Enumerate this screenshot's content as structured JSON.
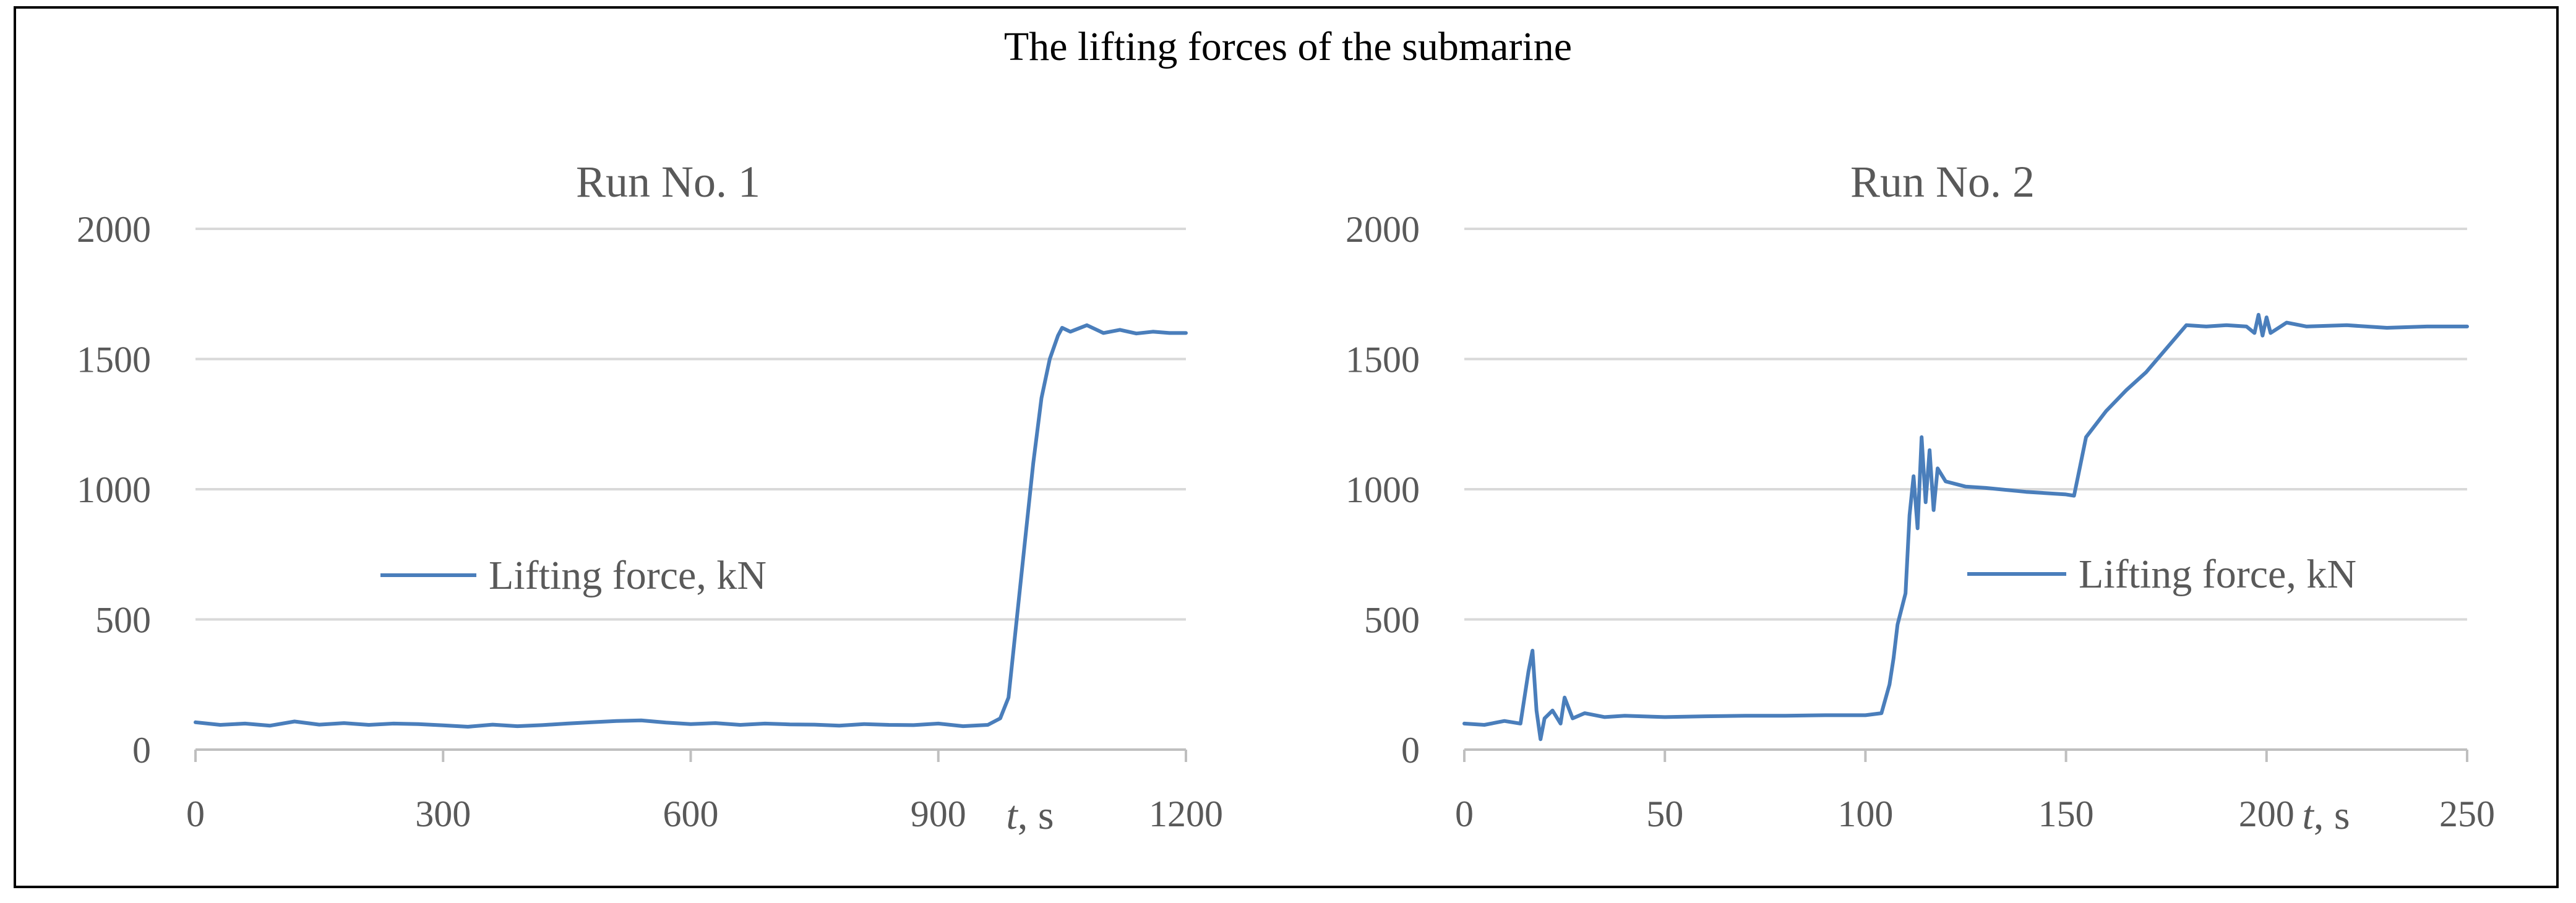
{
  "figure_title": "The lifting forces of the submarine",
  "chart_data": [
    {
      "type": "line",
      "title": "Run No. 1",
      "xlabel": "t, s",
      "xlabel_var": "t",
      "xlabel_unit": ", s",
      "ylabel": "",
      "xlim": [
        0,
        1200
      ],
      "ylim": [
        0,
        2000
      ],
      "x_ticks": [
        0,
        300,
        600,
        900,
        1200
      ],
      "y_ticks": [
        0,
        500,
        1000,
        1500,
        2000
      ],
      "x_tick_labels": [
        "0",
        "300",
        "600",
        "900",
        "1200"
      ],
      "y_tick_labels": [
        "0",
        "500",
        "1000",
        "1500",
        "2000"
      ],
      "grid": true,
      "legend": "center-left",
      "color": "#4a7ebb",
      "series": [
        {
          "name": "Lifting force, kN",
          "x": [
            0,
            30,
            60,
            90,
            120,
            150,
            180,
            210,
            240,
            270,
            300,
            330,
            360,
            390,
            420,
            450,
            480,
            510,
            540,
            570,
            600,
            630,
            660,
            690,
            720,
            750,
            780,
            810,
            840,
            870,
            900,
            930,
            960,
            975,
            985,
            995,
            1005,
            1015,
            1025,
            1035,
            1045,
            1050,
            1060,
            1080,
            1100,
            1120,
            1140,
            1160,
            1180,
            1200
          ],
          "y": [
            105,
            95,
            100,
            92,
            108,
            96,
            102,
            95,
            100,
            98,
            93,
            88,
            96,
            90,
            94,
            100,
            105,
            110,
            112,
            104,
            98,
            102,
            95,
            100,
            97,
            96,
            92,
            98,
            95,
            94,
            100,
            90,
            95,
            120,
            200,
            500,
            800,
            1100,
            1350,
            1500,
            1590,
            1620,
            1605,
            1630,
            1600,
            1612,
            1598,
            1605,
            1600,
            1600
          ]
        }
      ]
    },
    {
      "type": "line",
      "title": "Run No. 2",
      "xlabel": "t, s",
      "xlabel_var": "t",
      "xlabel_unit": ", s",
      "ylabel": "",
      "xlim": [
        0,
        250
      ],
      "ylim": [
        0,
        2000
      ],
      "x_ticks": [
        0,
        50,
        100,
        150,
        200,
        250
      ],
      "y_ticks": [
        0,
        500,
        1000,
        1500,
        2000
      ],
      "x_tick_labels": [
        "0",
        "50",
        "100",
        "150",
        "200",
        "250"
      ],
      "y_tick_labels": [
        "0",
        "500",
        "1000",
        "1500",
        "2000"
      ],
      "grid": true,
      "legend": "center-right",
      "color": "#4a7ebb",
      "series": [
        {
          "name": "Lifting force, kN",
          "x": [
            0,
            5,
            10,
            14,
            16,
            17,
            18,
            19,
            20,
            22,
            24,
            25,
            27,
            30,
            35,
            40,
            50,
            60,
            70,
            80,
            90,
            100,
            104,
            106,
            107,
            108,
            110,
            111,
            112,
            113,
            114,
            115,
            116,
            117,
            118,
            120,
            125,
            130,
            140,
            150,
            152,
            153,
            155,
            160,
            165,
            170,
            175,
            180,
            185,
            190,
            195,
            197,
            198,
            199,
            200,
            201,
            205,
            210,
            220,
            230,
            240,
            250
          ],
          "y": [
            100,
            95,
            110,
            100,
            300,
            380,
            150,
            40,
            120,
            150,
            100,
            200,
            120,
            140,
            125,
            130,
            125,
            128,
            130,
            130,
            132,
            132,
            140,
            250,
            350,
            480,
            600,
            900,
            1050,
            850,
            1200,
            950,
            1150,
            920,
            1080,
            1030,
            1010,
            1005,
            990,
            980,
            975,
            1050,
            1200,
            1300,
            1380,
            1450,
            1540,
            1630,
            1625,
            1630,
            1625,
            1600,
            1670,
            1590,
            1660,
            1600,
            1640,
            1625,
            1630,
            1620,
            1625,
            1625
          ]
        }
      ]
    }
  ]
}
